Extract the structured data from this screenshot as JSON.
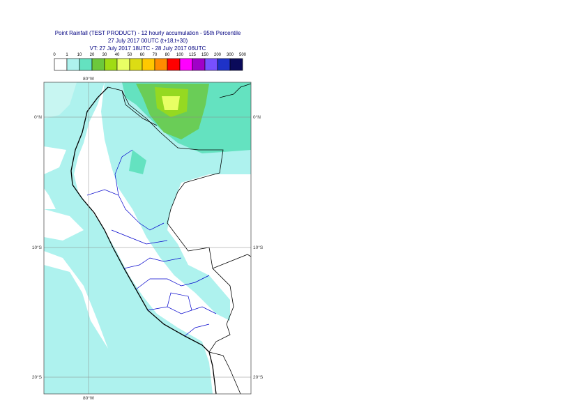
{
  "header": {
    "lines": [
      "Point Rainfall (TEST PRODUCT) - 12 hourly accumulation - 95th Percentile",
      "27 July 2017 00UTC (t+18,t+30)",
      "VT: 27 July 2017 18UTC - 28 July 2017 06UTC"
    ]
  },
  "legend": {
    "labels": [
      0,
      1,
      10,
      20,
      30,
      40,
      50,
      60,
      70,
      80,
      100,
      125,
      150,
      200,
      300,
      500
    ],
    "colors": [
      "#ffffff",
      "#aef2ee",
      "#64e2c0",
      "#6cc83c",
      "#a0dc14",
      "#e8ff64",
      "#dcdc14",
      "#ffc800",
      "#ff8c00",
      "#ff0000",
      "#ff00ff",
      "#a000c8",
      "#7850ff",
      "#1e32c8",
      "#0a0a5a"
    ]
  },
  "map": {
    "lat_labels": [
      "0°N",
      "10°S",
      "20°S"
    ],
    "lon_label": "80°W"
  }
}
